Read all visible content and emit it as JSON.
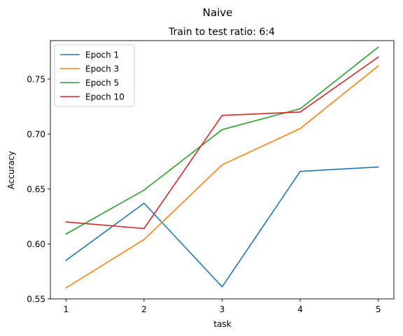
{
  "suptitle": "Naive",
  "chart_data": {
    "type": "line",
    "title": "Train to test ratio: 6:4",
    "xlabel": "task",
    "ylabel": "Accuracy",
    "x": [
      1,
      2,
      3,
      4,
      5
    ],
    "xticks": [
      "1",
      "2",
      "3",
      "4",
      "5"
    ],
    "ylim": [
      0.55,
      0.785
    ],
    "yticks": [
      0.55,
      0.6,
      0.65,
      0.7,
      0.75
    ],
    "ytick_labels": [
      "0.55",
      "0.60",
      "0.65",
      "0.70",
      "0.75"
    ],
    "legend_position": "upper-left",
    "grid": false,
    "series": [
      {
        "name": "Epoch 1",
        "color": "#1f77b4",
        "values": [
          0.585,
          0.637,
          0.561,
          0.666,
          0.67
        ]
      },
      {
        "name": "Epoch 3",
        "color": "#ff7f0e",
        "values": [
          0.56,
          0.604,
          0.672,
          0.705,
          0.762
        ]
      },
      {
        "name": "Epoch 5",
        "color": "#2ca02c",
        "values": [
          0.609,
          0.649,
          0.704,
          0.723,
          0.779
        ]
      },
      {
        "name": "Epoch 10",
        "color": "#d62728",
        "values": [
          0.62,
          0.614,
          0.717,
          0.72,
          0.77
        ]
      }
    ]
  }
}
